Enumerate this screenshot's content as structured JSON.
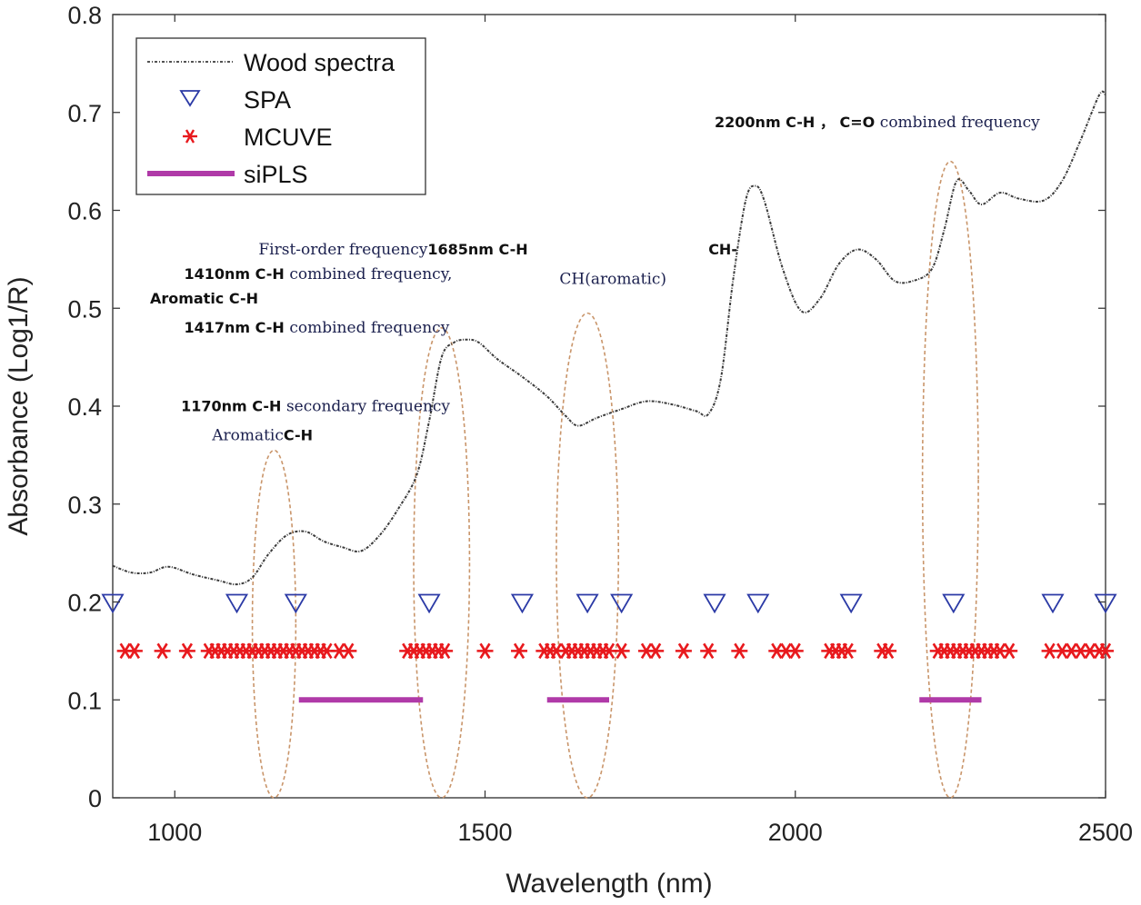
{
  "chart_data": {
    "type": "line",
    "title": "",
    "xlabel": "Wavelength (nm)",
    "ylabel": "Absorbance (Log1/R)",
    "xlim": [
      900,
      2500
    ],
    "ylim": [
      0,
      0.8
    ],
    "x_ticks": [
      1000,
      1500,
      2000,
      2500
    ],
    "y_ticks": [
      0,
      0.1,
      0.2,
      0.3,
      0.4,
      0.5,
      0.6,
      0.7,
      0.8
    ],
    "grid": false,
    "legend": {
      "position": "top-left",
      "entries": [
        "Wood spectra",
        "SPA",
        "MCUVE",
        "siPLS"
      ]
    },
    "series": [
      {
        "name": "Wood spectra",
        "style": "dashed-line",
        "x": [
          900,
          930,
          960,
          990,
          1030,
          1070,
          1100,
          1125,
          1150,
          1180,
          1210,
          1240,
          1270,
          1300,
          1330,
          1360,
          1390,
          1410,
          1430,
          1450,
          1470,
          1490,
          1520,
          1560,
          1600,
          1630,
          1650,
          1680,
          1720,
          1760,
          1800,
          1840,
          1860,
          1880,
          1900,
          1920,
          1935,
          1950,
          1980,
          2010,
          2040,
          2070,
          2100,
          2130,
          2160,
          2190,
          2220,
          2240,
          2260,
          2280,
          2300,
          2330,
          2360,
          2400,
          2430,
          2460,
          2490,
          2500
        ],
        "values": [
          0.237,
          0.23,
          0.23,
          0.236,
          0.228,
          0.222,
          0.218,
          0.225,
          0.248,
          0.268,
          0.272,
          0.262,
          0.256,
          0.252,
          0.268,
          0.295,
          0.33,
          0.385,
          0.45,
          0.465,
          0.468,
          0.465,
          0.448,
          0.43,
          0.41,
          0.39,
          0.38,
          0.388,
          0.397,
          0.405,
          0.402,
          0.395,
          0.392,
          0.428,
          0.53,
          0.61,
          0.625,
          0.61,
          0.54,
          0.497,
          0.51,
          0.545,
          0.56,
          0.55,
          0.528,
          0.528,
          0.54,
          0.58,
          0.63,
          0.62,
          0.606,
          0.618,
          0.612,
          0.61,
          0.63,
          0.672,
          0.718,
          0.718
        ]
      },
      {
        "name": "SPA",
        "style": "triangle-down-markers",
        "color": "#2b3aa6",
        "x": [
          900,
          1100,
          1195,
          1410,
          1560,
          1665,
          1720,
          1870,
          1940,
          2090,
          2255,
          2415,
          2500
        ],
        "values": [
          0.2,
          0.2,
          0.2,
          0.2,
          0.2,
          0.2,
          0.2,
          0.2,
          0.2,
          0.2,
          0.2,
          0.2,
          0.2
        ]
      },
      {
        "name": "MCUVE",
        "style": "star-markers",
        "color": "#e8191d",
        "x": [
          920,
          935,
          980,
          1020,
          1055,
          1065,
          1075,
          1085,
          1095,
          1105,
          1115,
          1125,
          1135,
          1145,
          1155,
          1165,
          1175,
          1185,
          1195,
          1205,
          1215,
          1225,
          1235,
          1245,
          1265,
          1280,
          1375,
          1385,
          1395,
          1405,
          1415,
          1425,
          1435,
          1500,
          1555,
          1595,
          1605,
          1615,
          1630,
          1640,
          1650,
          1660,
          1670,
          1680,
          1690,
          1700,
          1720,
          1760,
          1775,
          1820,
          1860,
          1910,
          1970,
          1985,
          2000,
          2055,
          2065,
          2075,
          2085,
          2140,
          2150,
          2230,
          2240,
          2250,
          2260,
          2270,
          2280,
          2290,
          2300,
          2310,
          2320,
          2330,
          2345,
          2410,
          2430,
          2445,
          2460,
          2475,
          2490,
          2500
        ],
        "values": [
          0.15,
          0.15,
          0.15,
          0.15,
          0.15,
          0.15,
          0.15,
          0.15,
          0.15,
          0.15,
          0.15,
          0.15,
          0.15,
          0.15,
          0.15,
          0.15,
          0.15,
          0.15,
          0.15,
          0.15,
          0.15,
          0.15,
          0.15,
          0.15,
          0.15,
          0.15,
          0.15,
          0.15,
          0.15,
          0.15,
          0.15,
          0.15,
          0.15,
          0.15,
          0.15,
          0.15,
          0.15,
          0.15,
          0.15,
          0.15,
          0.15,
          0.15,
          0.15,
          0.15,
          0.15,
          0.15,
          0.15,
          0.15,
          0.15,
          0.15,
          0.15,
          0.15,
          0.15,
          0.15,
          0.15,
          0.15,
          0.15,
          0.15,
          0.15,
          0.15,
          0.15,
          0.15,
          0.15,
          0.15,
          0.15,
          0.15,
          0.15,
          0.15,
          0.15,
          0.15,
          0.15,
          0.15,
          0.15,
          0.15,
          0.15,
          0.15,
          0.15,
          0.15,
          0.15,
          0.15
        ]
      },
      {
        "name": "siPLS",
        "style": "thick-segments",
        "color": "#b03aa8",
        "intervals": [
          [
            1200,
            1400
          ],
          [
            1600,
            1700
          ],
          [
            2200,
            2300
          ]
        ],
        "value": 0.1
      }
    ],
    "ellipses": [
      {
        "cx": 1160,
        "y_bottom": 0.0,
        "y_top": 0.355,
        "half_width": 35
      },
      {
        "cx": 1430,
        "y_bottom": 0.0,
        "y_top": 0.48,
        "half_width": 45
      },
      {
        "cx": 1665,
        "y_bottom": 0.0,
        "y_top": 0.495,
        "half_width": 50
      },
      {
        "cx": 2250,
        "y_bottom": 0.0,
        "y_top": 0.65,
        "half_width": 45
      }
    ],
    "annotations": [
      {
        "parts": [
          {
            "text": "1170nm C-H ",
            "style": "bold"
          },
          {
            "text": "secondary frequency",
            "style": "serif"
          }
        ],
        "x": 1010,
        "y": 0.395
      },
      {
        "parts": [
          {
            "text": "Aromatic",
            "style": "serif"
          },
          {
            "text": "C-H",
            "style": "bold"
          }
        ],
        "x": 1060,
        "y": 0.365
      },
      {
        "parts": [
          {
            "text": "First-order frequency",
            "style": "serif"
          },
          {
            "text": "1685nm C-H",
            "style": "bold"
          }
        ],
        "x": 1135,
        "y": 0.555
      },
      {
        "parts": [
          {
            "text": "1410nm C-H ",
            "style": "bold"
          },
          {
            "text": "combined frequency,",
            "style": "serif"
          }
        ],
        "x": 1015,
        "y": 0.53
      },
      {
        "parts": [
          {
            "text": "Aromatic C-H",
            "style": "bold"
          }
        ],
        "x": 960,
        "y": 0.505
      },
      {
        "parts": [
          {
            "text": "CH(aromatic)",
            "style": "serif"
          }
        ],
        "x": 1620,
        "y": 0.525
      },
      {
        "parts": [
          {
            "text": "1417nm C-H ",
            "style": "bold"
          },
          {
            "text": "combined frequency",
            "style": "serif"
          }
        ],
        "x": 1015,
        "y": 0.475
      },
      {
        "parts": [
          {
            "text": "CH-",
            "style": "bold"
          }
        ],
        "x": 1860,
        "y": 0.555
      },
      {
        "parts": [
          {
            "text": "2200nm C-H ， C=O ",
            "style": "bold"
          },
          {
            "text": "combined frequency",
            "style": "serif"
          }
        ],
        "x": 1870,
        "y": 0.685
      }
    ]
  }
}
